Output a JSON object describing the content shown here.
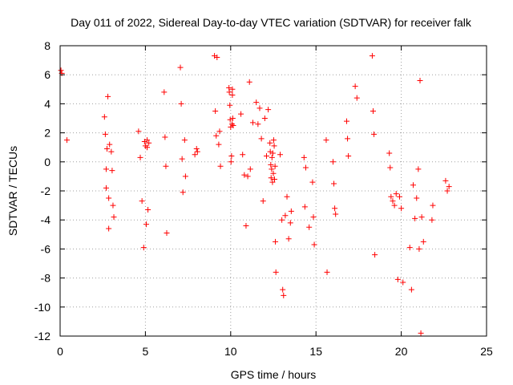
{
  "chart_data": {
    "type": "scatter",
    "title": "Day 011 of 2022, Sidereal Day-to-day VTEC variation (SDTVAR) for receiver falk",
    "xlabel": "GPS time / hours",
    "ylabel": "SDTVAR / TECUs",
    "xlim": [
      0,
      25
    ],
    "ylim": [
      -12,
      8
    ],
    "xticks": [
      0,
      5,
      10,
      15,
      20,
      25
    ],
    "yticks": [
      -12,
      -10,
      -8,
      -6,
      -4,
      -2,
      0,
      2,
      4,
      6,
      8
    ],
    "grid": true,
    "marker": "plus",
    "color": "#ff0000",
    "series": [
      {
        "name": "SDTVAR",
        "x": [
          0.05,
          0.1,
          0.4,
          2.6,
          2.65,
          2.7,
          2.7,
          2.75,
          2.8,
          2.85,
          2.85,
          2.9,
          3.0,
          3.05,
          3.1,
          3.15,
          4.6,
          4.7,
          4.8,
          4.9,
          4.95,
          5.0,
          5.05,
          5.1,
          5.1,
          5.15,
          5.2,
          6.1,
          6.15,
          6.2,
          6.25,
          7.05,
          7.1,
          7.15,
          7.2,
          7.3,
          7.35,
          7.9,
          8.0,
          8.05,
          9.05,
          9.1,
          9.15,
          9.2,
          9.3,
          9.35,
          9.4,
          9.9,
          9.92,
          9.95,
          9.97,
          10.0,
          10.02,
          10.05,
          10.08,
          10.1,
          10.1,
          10.12,
          10.15,
          10.6,
          10.7,
          10.8,
          10.9,
          11.0,
          11.1,
          11.15,
          11.3,
          11.5,
          11.6,
          11.7,
          11.8,
          11.9,
          12.0,
          12.1,
          12.2,
          12.3,
          12.32,
          12.35,
          12.37,
          12.4,
          12.42,
          12.45,
          12.47,
          12.5,
          12.52,
          12.55,
          12.57,
          12.6,
          12.62,
          12.65,
          12.9,
          13.0,
          13.05,
          13.1,
          13.2,
          13.3,
          13.4,
          13.5,
          13.55,
          14.3,
          14.35,
          14.4,
          14.6,
          14.8,
          14.85,
          14.9,
          15.6,
          15.65,
          16.0,
          16.05,
          16.1,
          16.15,
          16.8,
          16.85,
          16.9,
          17.3,
          17.4,
          18.3,
          18.35,
          18.4,
          18.45,
          19.3,
          19.35,
          19.4,
          19.5,
          19.6,
          19.7,
          19.8,
          19.9,
          20.0,
          20.1,
          20.5,
          20.6,
          20.7,
          20.8,
          20.9,
          21.0,
          21.05,
          21.1,
          21.15,
          21.2,
          21.3,
          21.8,
          21.85,
          22.6,
          22.7,
          22.8
        ],
        "y": [
          6.3,
          6.1,
          1.5,
          3.1,
          1.9,
          -0.5,
          -1.8,
          0.9,
          4.5,
          -2.5,
          -4.6,
          1.2,
          0.7,
          -0.6,
          -3.0,
          -3.8,
          2.1,
          0.3,
          -2.7,
          -5.9,
          1.4,
          1.1,
          -4.3,
          1.5,
          1.0,
          -3.3,
          1.3,
          4.8,
          1.7,
          -0.3,
          -4.9,
          6.5,
          4.0,
          0.2,
          -2.1,
          1.5,
          -1.0,
          0.5,
          0.9,
          0.7,
          7.3,
          3.5,
          1.8,
          7.2,
          1.2,
          2.1,
          -0.3,
          5.1,
          4.8,
          3.9,
          2.9,
          2.4,
          0.0,
          0.4,
          2.6,
          4.6,
          5.0,
          3.0,
          2.5,
          3.3,
          0.5,
          -0.9,
          -4.4,
          -1.0,
          5.5,
          -0.5,
          2.7,
          4.1,
          2.6,
          3.7,
          1.6,
          -2.7,
          3.0,
          0.4,
          3.6,
          1.3,
          0.7,
          -0.2,
          -1.1,
          -0.5,
          0.3,
          -1.4,
          0.6,
          -0.8,
          1.5,
          1.1,
          -1.2,
          -0.3,
          -5.5,
          -7.6,
          0.5,
          -4.0,
          -8.8,
          -9.2,
          -3.7,
          -2.4,
          -5.3,
          -4.2,
          -3.4,
          0.3,
          -3.1,
          -0.4,
          -4.5,
          -1.4,
          -3.8,
          -5.7,
          1.5,
          -7.6,
          0.0,
          -1.5,
          -3.2,
          -3.6,
          2.8,
          1.6,
          0.4,
          5.2,
          4.4,
          7.3,
          3.5,
          1.9,
          -6.4,
          0.6,
          -0.4,
          -2.4,
          -2.7,
          -3.0,
          -2.2,
          -8.1,
          -2.4,
          -3.2,
          -8.3,
          -5.9,
          -8.8,
          -1.6,
          -3.9,
          -2.5,
          -0.5,
          -6.0,
          5.6,
          -11.8,
          -3.8,
          -5.5,
          -4.0,
          -3.0,
          -1.3,
          -2.0,
          -1.7
        ]
      }
    ]
  }
}
